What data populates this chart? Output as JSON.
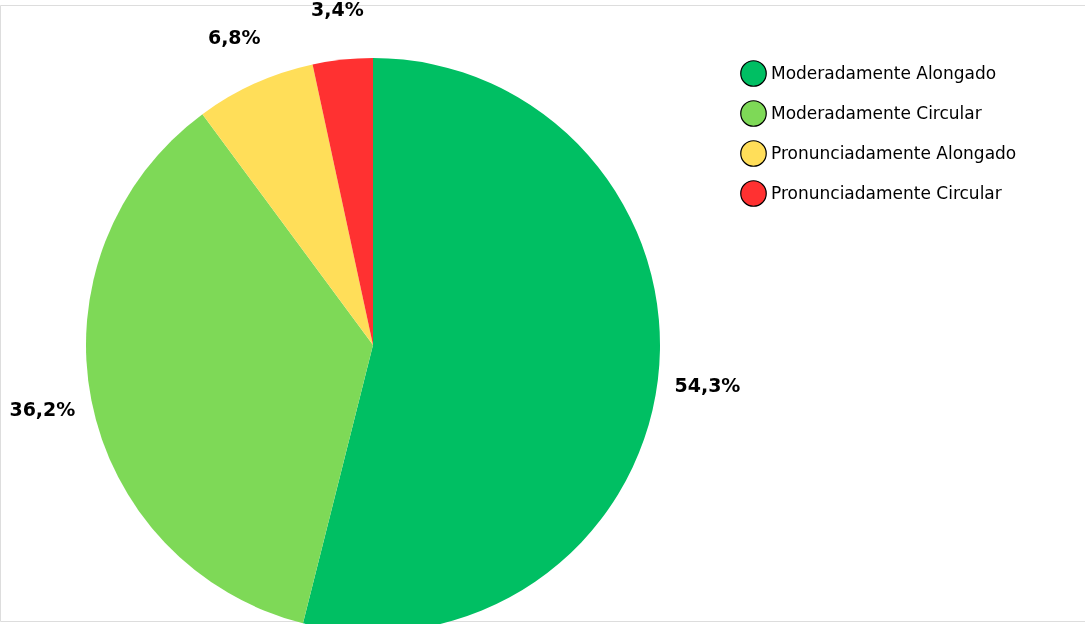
{
  "chart_data": {
    "type": "pie",
    "categories": [
      "Moderadamente Alongado",
      "Moderadamente Circular",
      "Pronunciadamente Alongado",
      "Pronunciadamente Circular"
    ],
    "values": [
      54.3,
      36.2,
      6.8,
      3.4
    ],
    "value_labels": [
      "54,3%",
      "36,2%",
      "6,8%",
      "3,4%"
    ],
    "colors": [
      "#00bf63",
      "#7ed957",
      "#ffde59",
      "#ff3131"
    ],
    "legend": "top right"
  }
}
